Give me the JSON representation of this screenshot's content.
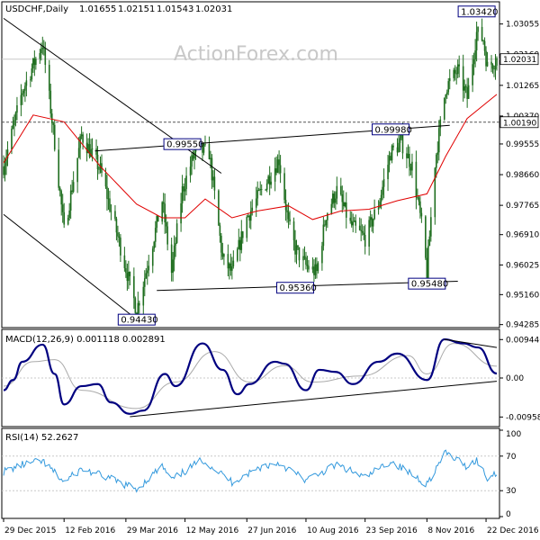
{
  "watermark": "ActionForex.com",
  "price_panel": {
    "header": {
      "symbol": "USDCHF,Daily",
      "open": "1.01655",
      "high": "1.02151",
      "low": "1.01543",
      "close": "1.02031"
    },
    "y_ticks": [
      "1.03055",
      "1.02160",
      "1.01265",
      "1.00370",
      "0.99555",
      "0.98660",
      "0.97765",
      "0.96910",
      "0.96025",
      "0.95160",
      "0.94285"
    ],
    "current_price_label": "1.02031",
    "level_label": "1.00190",
    "callouts": [
      {
        "label": "1.03420",
        "date": "2016-12-15",
        "price": 1.0342
      },
      {
        "label": "0.99550",
        "date": "2016-05-10",
        "price": 0.9955
      },
      {
        "label": "0.99980",
        "date": "2016-10-12",
        "price": 0.9998
      },
      {
        "label": "0.95360",
        "date": "2016-08-02",
        "price": 0.9536
      },
      {
        "label": "0.95480",
        "date": "2016-11-08",
        "price": 0.9548
      },
      {
        "label": "0.94430",
        "date": "2016-04-06",
        "price": 0.9443
      }
    ]
  },
  "macd_panel": {
    "header": "MACD(12,26,9) 0.001118 0.002891",
    "y_ticks": [
      "0.009446",
      "0.00",
      "-0.009588"
    ]
  },
  "rsi_panel": {
    "header": "RSI(14) 52.2627",
    "y_ticks": [
      "100",
      "70",
      "30",
      "0"
    ]
  },
  "x_ticks": [
    "29 Dec 2015",
    "12 Feb 2016",
    "29 Mar 2016",
    "12 May 2016",
    "27 Jun 2016",
    "10 Aug 2016",
    "23 Sep 2016",
    "8 Nov 2016",
    "22 Dec 2016"
  ],
  "colors": {
    "candle": "#1f6e1f",
    "ma_line": "#e00000",
    "macd_line": "#000080",
    "signal_line": "#aaaaaa",
    "rsi_line": "#3399dd",
    "trendline": "#000000",
    "grid": "#c8c8c8"
  },
  "chart_data": [
    {
      "type": "candlestick",
      "title": "USDCHF,Daily",
      "x_range": [
        "2015-12-29",
        "2016-12-30"
      ],
      "ylim": [
        0.9425,
        1.0365
      ],
      "ohlc_last": {
        "open": 1.01655,
        "high": 1.02151,
        "low": 1.01543,
        "close": 1.02031
      },
      "swing_points": [
        {
          "date": "2015-12-29",
          "close": 0.989
        },
        {
          "date": "2016-01-12",
          "close": 1.011
        },
        {
          "date": "2016-01-27",
          "close": 1.025
        },
        {
          "date": "2016-02-05",
          "close": 0.996
        },
        {
          "date": "2016-02-12",
          "close": 0.97
        },
        {
          "date": "2016-02-25",
          "close": 0.998
        },
        {
          "date": "2016-03-10",
          "close": 0.988
        },
        {
          "date": "2016-03-22",
          "close": 0.97
        },
        {
          "date": "2016-04-06",
          "close": 0.947
        },
        {
          "date": "2016-04-14",
          "close": 0.96
        },
        {
          "date": "2016-04-25",
          "close": 0.979
        },
        {
          "date": "2016-05-02",
          "close": 0.958
        },
        {
          "date": "2016-05-10",
          "close": 0.982
        },
        {
          "date": "2016-05-20",
          "close": 0.994
        },
        {
          "date": "2016-05-30",
          "close": 0.993
        },
        {
          "date": "2016-06-09",
          "close": 0.962
        },
        {
          "date": "2016-06-16",
          "close": 0.958
        },
        {
          "date": "2016-06-27",
          "close": 0.974
        },
        {
          "date": "2016-07-08",
          "close": 0.982
        },
        {
          "date": "2016-07-21",
          "close": 0.991
        },
        {
          "date": "2016-07-28",
          "close": 0.972
        },
        {
          "date": "2016-08-02",
          "close": 0.965
        },
        {
          "date": "2016-08-10",
          "close": 0.96
        },
        {
          "date": "2016-08-18",
          "close": 0.958
        },
        {
          "date": "2016-08-25",
          "close": 0.975
        },
        {
          "date": "2016-09-02",
          "close": 0.982
        },
        {
          "date": "2016-09-12",
          "close": 0.972
        },
        {
          "date": "2016-09-23",
          "close": 0.968
        },
        {
          "date": "2016-10-03",
          "close": 0.978
        },
        {
          "date": "2016-10-12",
          "close": 0.993
        },
        {
          "date": "2016-10-20",
          "close": 0.996
        },
        {
          "date": "2016-10-28",
          "close": 0.989
        },
        {
          "date": "2016-11-04",
          "close": 0.972
        },
        {
          "date": "2016-11-08",
          "close": 0.958
        },
        {
          "date": "2016-11-14",
          "close": 0.99
        },
        {
          "date": "2016-11-22",
          "close": 1.012
        },
        {
          "date": "2016-12-01",
          "close": 1.017
        },
        {
          "date": "2016-12-08",
          "close": 1.009
        },
        {
          "date": "2016-12-15",
          "close": 1.028
        },
        {
          "date": "2016-12-20",
          "close": 1.026
        },
        {
          "date": "2016-12-23",
          "close": 1.018
        },
        {
          "date": "2016-12-30",
          "close": 1.0203
        }
      ],
      "moving_average": [
        {
          "date": "2015-12-29",
          "value": 0.99
        },
        {
          "date": "2016-01-20",
          "value": 1.004
        },
        {
          "date": "2016-02-12",
          "value": 1.002
        },
        {
          "date": "2016-03-10",
          "value": 0.989
        },
        {
          "date": "2016-04-06",
          "value": 0.978
        },
        {
          "date": "2016-04-25",
          "value": 0.974
        },
        {
          "date": "2016-05-12",
          "value": 0.974
        },
        {
          "date": "2016-05-27",
          "value": 0.9795
        },
        {
          "date": "2016-06-16",
          "value": 0.974
        },
        {
          "date": "2016-07-05",
          "value": 0.976
        },
        {
          "date": "2016-07-28",
          "value": 0.9775
        },
        {
          "date": "2016-08-15",
          "value": 0.9735
        },
        {
          "date": "2016-09-05",
          "value": 0.976
        },
        {
          "date": "2016-09-26",
          "value": 0.9765
        },
        {
          "date": "2016-10-17",
          "value": 0.979
        },
        {
          "date": "2016-11-08",
          "value": 0.981
        },
        {
          "date": "2016-11-22",
          "value": 0.992
        },
        {
          "date": "2016-12-08",
          "value": 1.003
        },
        {
          "date": "2016-12-30",
          "value": 1.01
        }
      ],
      "horizontal_levels": [
        1.0203,
        1.0019
      ],
      "trendlines": [
        {
          "from": {
            "date": "2015-12-29",
            "price": 1.0322
          },
          "to": {
            "date": "2016-06-08",
            "price": 0.987
          }
        },
        {
          "from": {
            "date": "2015-12-29",
            "price": 0.975
          },
          "to": {
            "date": "2016-04-04",
            "price": 0.945
          }
        },
        {
          "from": {
            "date": "2016-03-06",
            "price": 0.9935
          },
          "to": {
            "date": "2016-11-25",
            "price": 1.001
          }
        },
        {
          "from": {
            "date": "2016-04-21",
            "price": 0.9528
          },
          "to": {
            "date": "2016-12-01",
            "price": 0.9555
          }
        }
      ]
    },
    {
      "type": "line",
      "title": "MACD(12,26,9) 0.001118 0.002891",
      "ylim": [
        -0.0115,
        0.0115
      ],
      "series": [
        {
          "name": "MACD",
          "points": [
            {
              "date": "2015-12-29",
              "value": -0.003
            },
            {
              "date": "2016-01-05",
              "value": -0.0005
            },
            {
              "date": "2016-01-12",
              "value": 0.004
            },
            {
              "date": "2016-01-27",
              "value": 0.0082
            },
            {
              "date": "2016-02-05",
              "value": 0.001
            },
            {
              "date": "2016-02-12",
              "value": -0.0065
            },
            {
              "date": "2016-02-25",
              "value": -0.002
            },
            {
              "date": "2016-03-08",
              "value": -0.0015
            },
            {
              "date": "2016-03-18",
              "value": -0.006
            },
            {
              "date": "2016-04-01",
              "value": -0.0088
            },
            {
              "date": "2016-04-11",
              "value": -0.008
            },
            {
              "date": "2016-04-27",
              "value": 0.001
            },
            {
              "date": "2016-05-05",
              "value": -0.002
            },
            {
              "date": "2016-05-25",
              "value": 0.0085
            },
            {
              "date": "2016-06-09",
              "value": 0.002
            },
            {
              "date": "2016-06-20",
              "value": -0.004
            },
            {
              "date": "2016-06-29",
              "value": -0.0015
            },
            {
              "date": "2016-07-18",
              "value": 0.004
            },
            {
              "date": "2016-07-25",
              "value": 0.0035
            },
            {
              "date": "2016-08-10",
              "value": -0.003
            },
            {
              "date": "2016-08-20",
              "value": 0.002
            },
            {
              "date": "2016-09-01",
              "value": 0.0015
            },
            {
              "date": "2016-09-14",
              "value": -0.0015
            },
            {
              "date": "2016-10-03",
              "value": 0.004
            },
            {
              "date": "2016-10-17",
              "value": 0.006
            },
            {
              "date": "2016-11-08",
              "value": -0.0005
            },
            {
              "date": "2016-11-21",
              "value": 0.0095
            },
            {
              "date": "2016-12-05",
              "value": 0.0085
            },
            {
              "date": "2016-12-16",
              "value": 0.0075
            },
            {
              "date": "2016-12-30",
              "value": 0.0011
            }
          ]
        },
        {
          "name": "Signal",
          "points": [
            {
              "date": "2015-12-29",
              "value": -0.002
            },
            {
              "date": "2016-01-20",
              "value": 0.004
            },
            {
              "date": "2016-02-05",
              "value": 0.0045
            },
            {
              "date": "2016-02-25",
              "value": -0.003
            },
            {
              "date": "2016-04-06",
              "value": -0.0075
            },
            {
              "date": "2016-05-05",
              "value": -0.001
            },
            {
              "date": "2016-06-03",
              "value": 0.0065
            },
            {
              "date": "2016-06-29",
              "value": -0.001
            },
            {
              "date": "2016-07-25",
              "value": 0.003
            },
            {
              "date": "2016-08-15",
              "value": -0.001
            },
            {
              "date": "2016-09-20",
              "value": 0.0005
            },
            {
              "date": "2016-10-25",
              "value": 0.0055
            },
            {
              "date": "2016-11-08",
              "value": 0.001
            },
            {
              "date": "2016-11-28",
              "value": 0.0085
            },
            {
              "date": "2016-12-30",
              "value": 0.0029
            }
          ]
        }
      ],
      "trendlines": [
        {
          "from": {
            "date": "2016-04-01",
            "value": -0.0095
          },
          "to": {
            "date": "2016-12-30",
            "value": -0.0008
          }
        },
        {
          "from": {
            "date": "2016-11-21",
            "value": 0.0095
          },
          "to": {
            "date": "2016-12-30",
            "value": 0.0075
          }
        }
      ]
    },
    {
      "type": "line",
      "title": "RSI(14) 52.2627",
      "ylim": [
        0,
        100
      ],
      "reference_levels": [
        70,
        30
      ],
      "series": [
        {
          "name": "RSI(14)",
          "points": [
            {
              "date": "2015-12-29",
              "value": 52
            },
            {
              "date": "2016-01-12",
              "value": 60
            },
            {
              "date": "2016-01-27",
              "value": 64
            },
            {
              "date": "2016-02-12",
              "value": 40
            },
            {
              "date": "2016-02-25",
              "value": 55
            },
            {
              "date": "2016-03-10",
              "value": 48
            },
            {
              "date": "2016-04-06",
              "value": 32
            },
            {
              "date": "2016-04-25",
              "value": 58
            },
            {
              "date": "2016-05-02",
              "value": 42
            },
            {
              "date": "2016-05-25",
              "value": 66
            },
            {
              "date": "2016-06-16",
              "value": 40
            },
            {
              "date": "2016-07-08",
              "value": 58
            },
            {
              "date": "2016-07-21",
              "value": 62
            },
            {
              "date": "2016-08-10",
              "value": 42
            },
            {
              "date": "2016-09-02",
              "value": 60
            },
            {
              "date": "2016-09-23",
              "value": 45
            },
            {
              "date": "2016-10-12",
              "value": 64
            },
            {
              "date": "2016-11-08",
              "value": 38
            },
            {
              "date": "2016-11-22",
              "value": 74
            },
            {
              "date": "2016-12-08",
              "value": 58
            },
            {
              "date": "2016-12-15",
              "value": 66
            },
            {
              "date": "2016-12-23",
              "value": 44
            },
            {
              "date": "2016-12-30",
              "value": 52
            }
          ]
        }
      ]
    }
  ]
}
